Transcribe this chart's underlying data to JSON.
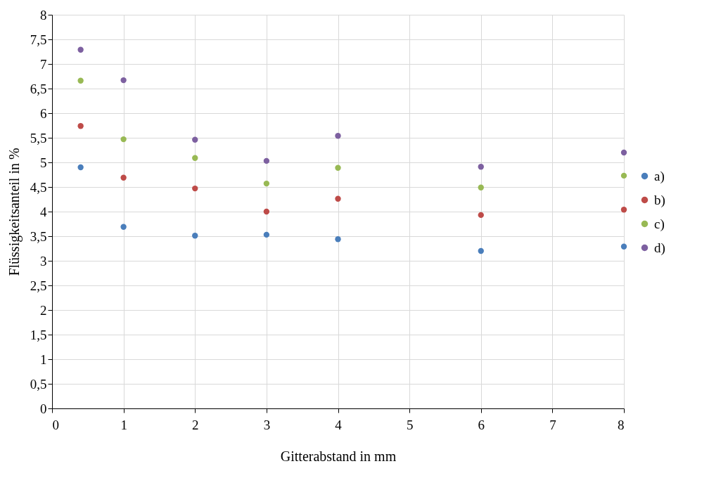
{
  "chart_data": {
    "type": "scatter",
    "xlabel": "Gitterabstand in mm",
    "ylabel": "Flüssigkeitsanteil in %",
    "x": [
      0.4,
      1,
      2,
      3,
      4,
      6,
      8
    ],
    "series": [
      {
        "name": "a)",
        "color": "#4a7ebb",
        "values": [
          4.9,
          3.69,
          3.51,
          3.53,
          3.44,
          3.2,
          3.29
        ]
      },
      {
        "name": "b)",
        "color": "#be4b48",
        "values": [
          5.74,
          4.69,
          4.47,
          4.0,
          4.26,
          3.93,
          4.04
        ]
      },
      {
        "name": "c)",
        "color": "#98b954",
        "values": [
          6.66,
          5.47,
          5.09,
          4.57,
          4.89,
          4.49,
          4.73
        ]
      },
      {
        "name": "d)",
        "color": "#7d60a0",
        "values": [
          7.29,
          6.67,
          5.46,
          5.03,
          5.54,
          4.91,
          5.2
        ]
      }
    ],
    "xlim": [
      0,
      8
    ],
    "xticks": [
      0,
      1,
      2,
      3,
      4,
      5,
      6,
      7,
      8
    ],
    "ylim": [
      0,
      8
    ],
    "yticks": [
      {
        "value": 0,
        "label": "0"
      },
      {
        "value": 0.5,
        "label": "0,5"
      },
      {
        "value": 1,
        "label": "1"
      },
      {
        "value": 1.5,
        "label": "1,5"
      },
      {
        "value": 2,
        "label": "2"
      },
      {
        "value": 2.5,
        "label": "2,5"
      },
      {
        "value": 3,
        "label": "3"
      },
      {
        "value": 3.5,
        "label": "3,5"
      },
      {
        "value": 4,
        "label": "4"
      },
      {
        "value": 4.5,
        "label": "4,5"
      },
      {
        "value": 5,
        "label": "5"
      },
      {
        "value": 5.5,
        "label": "5,5"
      },
      {
        "value": 6,
        "label": "6"
      },
      {
        "value": 6.5,
        "label": "6,5"
      },
      {
        "value": 7,
        "label": "7"
      },
      {
        "value": 7.5,
        "label": "7,5"
      },
      {
        "value": 8,
        "label": "8"
      }
    ],
    "grid": true,
    "legend": "right",
    "marker": "circle"
  }
}
